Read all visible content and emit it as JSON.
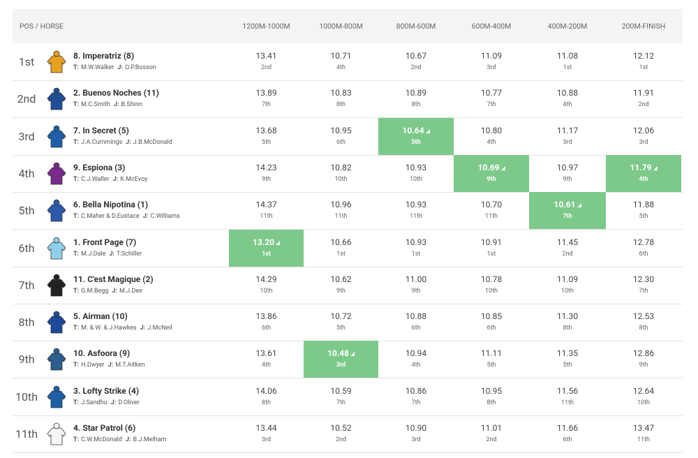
{
  "table": {
    "columns": [
      "POS / HORSE",
      "1200M-1000M",
      "1000M-800M",
      "800M-600M",
      "600M-400M",
      "400M-200M",
      "200M-FINISH"
    ],
    "trainer_label": "T:",
    "jockey_label": "J:",
    "rows": [
      {
        "pos": "1st",
        "horse": "8. Imperatriz (8)",
        "trainer": "M.W.Walker",
        "jockey": "O.P.Bosson",
        "splits": [
          {
            "time": "13.41",
            "rank": "2nd"
          },
          {
            "time": "10.71",
            "rank": "4th"
          },
          {
            "time": "10.67",
            "rank": "2nd"
          },
          {
            "time": "11.09",
            "rank": "3rd"
          },
          {
            "time": "11.08",
            "rank": "1st"
          },
          {
            "time": "12.12",
            "rank": "1st"
          }
        ]
      },
      {
        "pos": "2nd",
        "horse": "2. Buenos Noches (11)",
        "trainer": "M.C.Smith",
        "jockey": "B.Shinn",
        "splits": [
          {
            "time": "13.89",
            "rank": "7th"
          },
          {
            "time": "10.83",
            "rank": "8th"
          },
          {
            "time": "10.89",
            "rank": "8th"
          },
          {
            "time": "10.77",
            "rank": "7th"
          },
          {
            "time": "10.88",
            "rank": "4th"
          },
          {
            "time": "11.91",
            "rank": "2nd"
          }
        ]
      },
      {
        "pos": "3rd",
        "horse": "7. In Secret (5)",
        "trainer": "J.A.Cummings",
        "jockey": "J.B.McDonald",
        "splits": [
          {
            "time": "13.68",
            "rank": "5th"
          },
          {
            "time": "10.95",
            "rank": "6th"
          },
          {
            "time": "10.64",
            "rank": "5th",
            "best": true
          },
          {
            "time": "10.80",
            "rank": "4th"
          },
          {
            "time": "11.17",
            "rank": "3rd"
          },
          {
            "time": "12.06",
            "rank": "3rd"
          }
        ]
      },
      {
        "pos": "4th",
        "horse": "9. Espiona (3)",
        "trainer": "C.J.Waller",
        "jockey": "K.McEvoy",
        "splits": [
          {
            "time": "14.23",
            "rank": "9th"
          },
          {
            "time": "10.82",
            "rank": "10th"
          },
          {
            "time": "10.93",
            "rank": "10th"
          },
          {
            "time": "10.69",
            "rank": "9th",
            "best": true
          },
          {
            "time": "10.97",
            "rank": "9th"
          },
          {
            "time": "11.79",
            "rank": "4th",
            "best": true
          }
        ]
      },
      {
        "pos": "5th",
        "horse": "6. Bella Nipotina (1)",
        "trainer": "C.Maher & D.Eustace",
        "jockey": "C.Williams",
        "splits": [
          {
            "time": "14.37",
            "rank": "11th"
          },
          {
            "time": "10.96",
            "rank": "11th"
          },
          {
            "time": "10.93",
            "rank": "11th"
          },
          {
            "time": "10.70",
            "rank": "11th"
          },
          {
            "time": "10.61",
            "rank": "7th",
            "best": true
          },
          {
            "time": "11.88",
            "rank": "5th"
          }
        ]
      },
      {
        "pos": "6th",
        "horse": "1. Front Page (7)",
        "trainer": "M.J.Dale",
        "jockey": "T.Schiller",
        "splits": [
          {
            "time": "13.20",
            "rank": "1st",
            "best": true
          },
          {
            "time": "10.66",
            "rank": "1st"
          },
          {
            "time": "10.93",
            "rank": "1st"
          },
          {
            "time": "10.91",
            "rank": "1st"
          },
          {
            "time": "11.45",
            "rank": "2nd"
          },
          {
            "time": "12.78",
            "rank": "6th"
          }
        ]
      },
      {
        "pos": "7th",
        "horse": "11. C'est Magique (2)",
        "trainer": "G.M.Begg",
        "jockey": "M.J.Dee",
        "splits": [
          {
            "time": "14.29",
            "rank": "10th"
          },
          {
            "time": "10.62",
            "rank": "9th"
          },
          {
            "time": "11.00",
            "rank": "9th"
          },
          {
            "time": "10.78",
            "rank": "10th"
          },
          {
            "time": "11.09",
            "rank": "10th"
          },
          {
            "time": "12.30",
            "rank": "7th"
          }
        ]
      },
      {
        "pos": "8th",
        "horse": "5. Airman (10)",
        "trainer": "M. & W. & J.Hawkes",
        "jockey": "J.McNeil",
        "splits": [
          {
            "time": "13.86",
            "rank": "6th"
          },
          {
            "time": "10.72",
            "rank": "5th"
          },
          {
            "time": "10.88",
            "rank": "6th"
          },
          {
            "time": "10.85",
            "rank": "6th"
          },
          {
            "time": "11.30",
            "rank": "8th"
          },
          {
            "time": "12.53",
            "rank": "8th"
          }
        ]
      },
      {
        "pos": "9th",
        "horse": "10. Asfoora (9)",
        "trainer": "H.Dwyer",
        "jockey": "M.T.Aitken",
        "splits": [
          {
            "time": "13.61",
            "rank": "4th"
          },
          {
            "time": "10.48",
            "rank": "3rd",
            "best": true
          },
          {
            "time": "10.94",
            "rank": "4th"
          },
          {
            "time": "11.11",
            "rank": "5th"
          },
          {
            "time": "11.35",
            "rank": "5th"
          },
          {
            "time": "12.86",
            "rank": "9th"
          }
        ]
      },
      {
        "pos": "10th",
        "horse": "3. Lofty Strike (4)",
        "trainer": "J.Sandhu",
        "jockey": "D.Oliver",
        "splits": [
          {
            "time": "14.06",
            "rank": "8th"
          },
          {
            "time": "10.59",
            "rank": "7th"
          },
          {
            "time": "10.86",
            "rank": "7th"
          },
          {
            "time": "10.95",
            "rank": "8th"
          },
          {
            "time": "11.56",
            "rank": "11th"
          },
          {
            "time": "12.64",
            "rank": "10th"
          }
        ]
      },
      {
        "pos": "11th",
        "horse": "4. Star Patrol (6)",
        "trainer": "C.W.McDonald",
        "jockey": "B.J.Melham",
        "splits": [
          {
            "time": "13.44",
            "rank": "3rd"
          },
          {
            "time": "10.52",
            "rank": "2nd"
          },
          {
            "time": "10.90",
            "rank": "3rd"
          },
          {
            "time": "11.01",
            "rank": "2nd"
          },
          {
            "time": "11.66",
            "rank": "6th"
          },
          {
            "time": "13.47",
            "rank": "11th"
          }
        ]
      }
    ]
  }
}
